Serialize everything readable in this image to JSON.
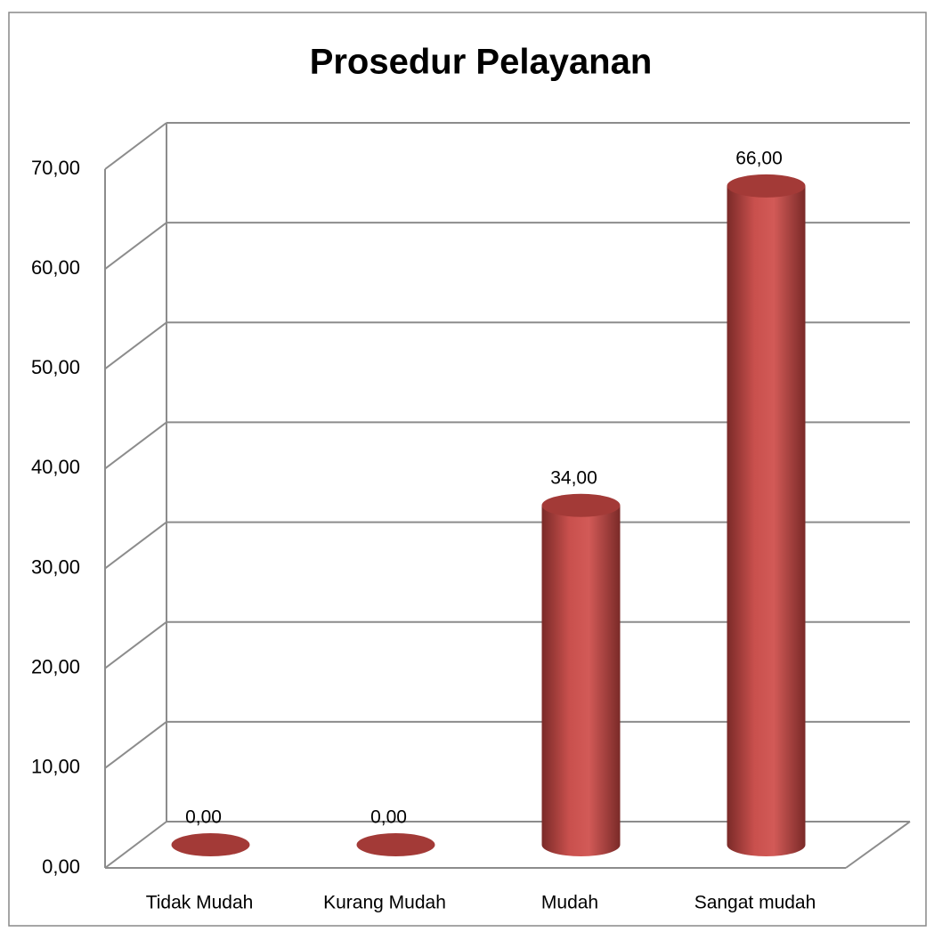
{
  "chart_data": {
    "type": "bar3d",
    "title": "Prosedur Pelayanan",
    "categories": [
      "Tidak Mudah",
      "Kurang Mudah",
      "Mudah",
      "Sangat mudah"
    ],
    "values": [
      0,
      0,
      34,
      66
    ],
    "value_labels": [
      "0,00",
      "0,00",
      "34,00",
      "66,00"
    ],
    "color": "#c0504d",
    "ylim": [
      0,
      70
    ],
    "yticks": [
      {
        "value": 0,
        "label": "0,00"
      },
      {
        "value": 10,
        "label": "10,00"
      },
      {
        "value": 20,
        "label": "20,00"
      },
      {
        "value": 30,
        "label": "30,00"
      },
      {
        "value": 40,
        "label": "40,00"
      },
      {
        "value": 50,
        "label": "50,00"
      },
      {
        "value": 60,
        "label": "60,00"
      },
      {
        "value": 70,
        "label": "70,00"
      }
    ],
    "grid": true
  }
}
